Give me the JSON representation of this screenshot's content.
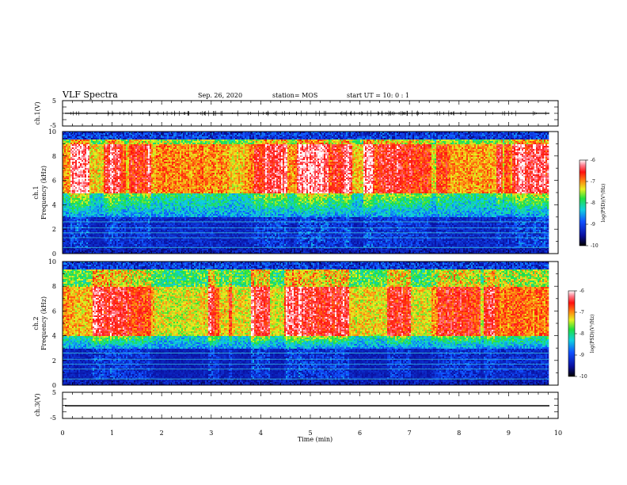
{
  "header": {
    "title": "VLF Spectra",
    "date": "Sep. 26, 2020",
    "station": "station= MOS",
    "start": "start  UT =   10: 0  : 1"
  },
  "colors": {
    "spectrogram_high": "#ff2a1a",
    "spectrogram_mid": "#30e050",
    "spectrogram_low": "#0a18a0",
    "background": "#ffffff"
  },
  "chart_data": [
    {
      "type": "line",
      "name": "ch1-waveform",
      "ylabel": "ch.1(V)",
      "ylim": [
        -5,
        5
      ],
      "yticks": [
        "5",
        "-5"
      ],
      "series": [
        {
          "x": [
            0,
            9.83
          ],
          "y": [
            0,
            0
          ]
        }
      ]
    },
    {
      "type": "heatmap",
      "name": "ch1-spectrogram",
      "ylabel_line1": "ch.1",
      "ylabel_line2": "Frequency (kHz)",
      "ylim": [
        0,
        10
      ],
      "yticks": [
        "0",
        "2",
        "4",
        "6",
        "8",
        "10"
      ],
      "dominant_band_khz": [
        5,
        9
      ],
      "colorbar": {
        "label": "log(PSD)(V²/Hz)",
        "range": [
          -10,
          -6
        ],
        "ticks": [
          "-6",
          "-7",
          "-8",
          "-9",
          "-10"
        ]
      }
    },
    {
      "type": "heatmap",
      "name": "ch2-spectrogram",
      "ylabel_line1": "ch.2",
      "ylabel_line2": "Frequency (kHz)",
      "ylim": [
        0,
        10
      ],
      "yticks": [
        "0",
        "2",
        "4",
        "6",
        "8",
        "10"
      ],
      "dominant_band_khz": [
        4,
        8
      ],
      "colorbar": {
        "label": "log(PSD)(V²/Hz)",
        "range": [
          -10,
          -6
        ],
        "ticks": [
          "-6",
          "-7",
          "-8",
          "-9",
          "-10"
        ]
      }
    },
    {
      "type": "line",
      "name": "ch3-waveform",
      "ylabel": "ch.3(V)",
      "ylim": [
        -5,
        5
      ],
      "yticks": [
        "5",
        "-5"
      ],
      "series": [
        {
          "x": [
            0,
            9.83
          ],
          "y": [
            -1,
            -1
          ]
        }
      ]
    }
  ],
  "x_axis": {
    "label": "Time (min)",
    "range": [
      0,
      10
    ],
    "ticks": [
      "0",
      "1",
      "2",
      "3",
      "4",
      "5",
      "6",
      "7",
      "8",
      "9",
      "10"
    ]
  }
}
